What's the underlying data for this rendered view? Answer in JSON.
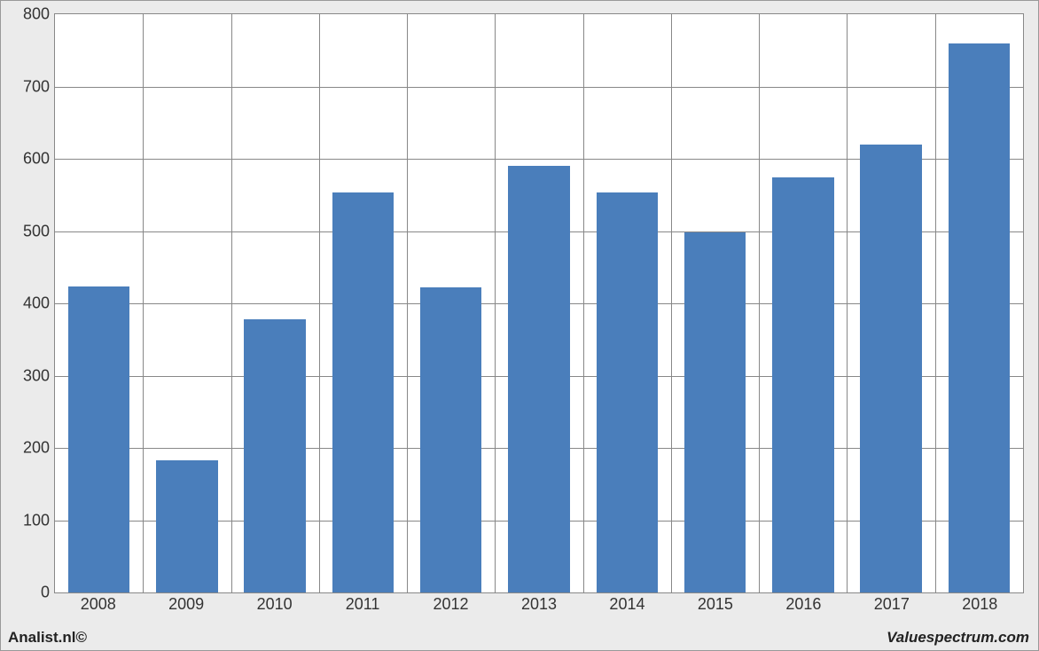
{
  "chart": {
    "type": "bar",
    "categories": [
      "2008",
      "2009",
      "2010",
      "2011",
      "2012",
      "2013",
      "2014",
      "2015",
      "2016",
      "2017",
      "2018"
    ],
    "values": [
      423,
      183,
      378,
      553,
      422,
      590,
      553,
      498,
      574,
      620,
      760
    ],
    "bar_color": "#4a7ebb",
    "background_color": "#ffffff",
    "page_background": "#ebebeb",
    "grid_color": "#888888",
    "ylim": [
      0,
      800
    ],
    "ytick_step": 100,
    "bar_width_ratio": 0.7,
    "label_fontsize": 18,
    "label_color": "#333333",
    "border_color": "#888888"
  },
  "footer": {
    "left": "Analist.nl©",
    "right": "Valuespectrum.com",
    "fontsize": 17,
    "color": "#222222"
  }
}
